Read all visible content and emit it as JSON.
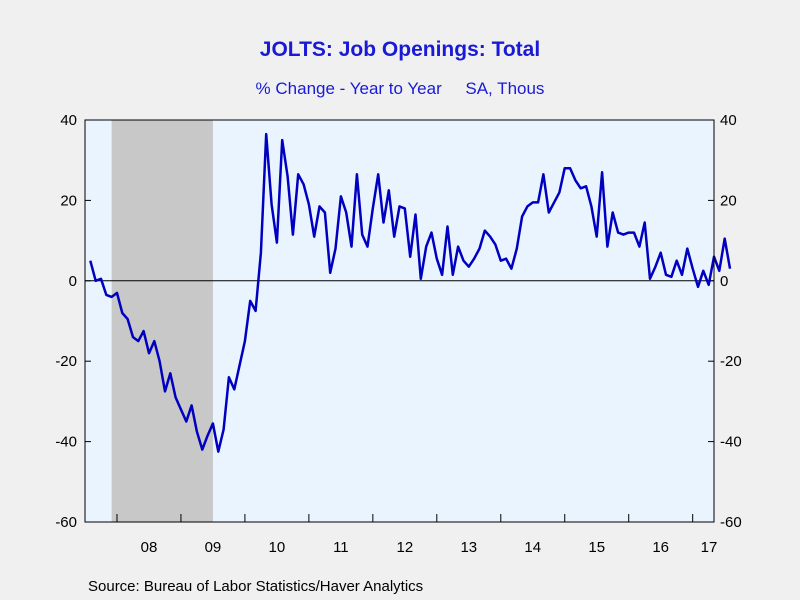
{
  "header": {
    "title": "JOLTS: Job Openings: Total",
    "subtitle": "% Change - Year to Year     SA, Thous"
  },
  "footer": {
    "source": "Source:  Bureau of Labor Statistics/Haver Analytics"
  },
  "colors": {
    "line": "#0000c0",
    "plot_bg": "#eaf4ff",
    "recession": "#c8c8c8",
    "page_bg": "#f0f0f0",
    "title": "#1a1ad6"
  },
  "chart_data": {
    "type": "line",
    "title": "JOLTS: Job Openings: Total",
    "subtitle": "% Change - Year to Year     SA, Thous",
    "ylim": [
      -60,
      40
    ],
    "y_ticks": [
      40,
      20,
      0,
      -20,
      -40,
      -60
    ],
    "x_range": [
      "2007-07",
      "2017-05"
    ],
    "x_tick_labels": [
      "08",
      "09",
      "10",
      "11",
      "12",
      "13",
      "14",
      "15",
      "16",
      "17"
    ],
    "recession_shading": [
      {
        "start": "2007-12",
        "end": "2009-06"
      }
    ],
    "zero_line": true,
    "start_month": "2007-08",
    "series": [
      {
        "values": [
          5,
          0,
          0.5,
          -3.5,
          -4,
          -3,
          -8,
          -9.5,
          -14,
          -15,
          -12.5,
          -18,
          -15,
          -20,
          -27.5,
          -23,
          -29,
          -32,
          -35,
          -31,
          -37.5,
          -42,
          -38.5,
          -35.5,
          -42.5,
          -37,
          -24,
          -27,
          -21,
          -15,
          -5,
          -7.5,
          7,
          36.5,
          19,
          9.5,
          35,
          26,
          11.5,
          26.5,
          24,
          19,
          11,
          18.5,
          17,
          2,
          8,
          21,
          17,
          8.5,
          26.5,
          11.5,
          8.5,
          18,
          26.5,
          14.5,
          22.5,
          11,
          18.5,
          18,
          6,
          16.5,
          0.5,
          8.5,
          12,
          5.5,
          1.5,
          13.5,
          1.5,
          8.5,
          5,
          3.5,
          5.5,
          8,
          12.5,
          11,
          9,
          5,
          5.5,
          3,
          8,
          16,
          18.5,
          19.5,
          19.5,
          26.5,
          17,
          19.5,
          22,
          28,
          28,
          25,
          23,
          23.5,
          18.5,
          11,
          27,
          8.5,
          17,
          12,
          11.5,
          12,
          12,
          8.5,
          14.5,
          0.5,
          3.5,
          7,
          1.5,
          1,
          5,
          1.5,
          8,
          3,
          -1.5,
          2.5,
          -1,
          6,
          2.5,
          10.5,
          3
        ]
      }
    ]
  }
}
